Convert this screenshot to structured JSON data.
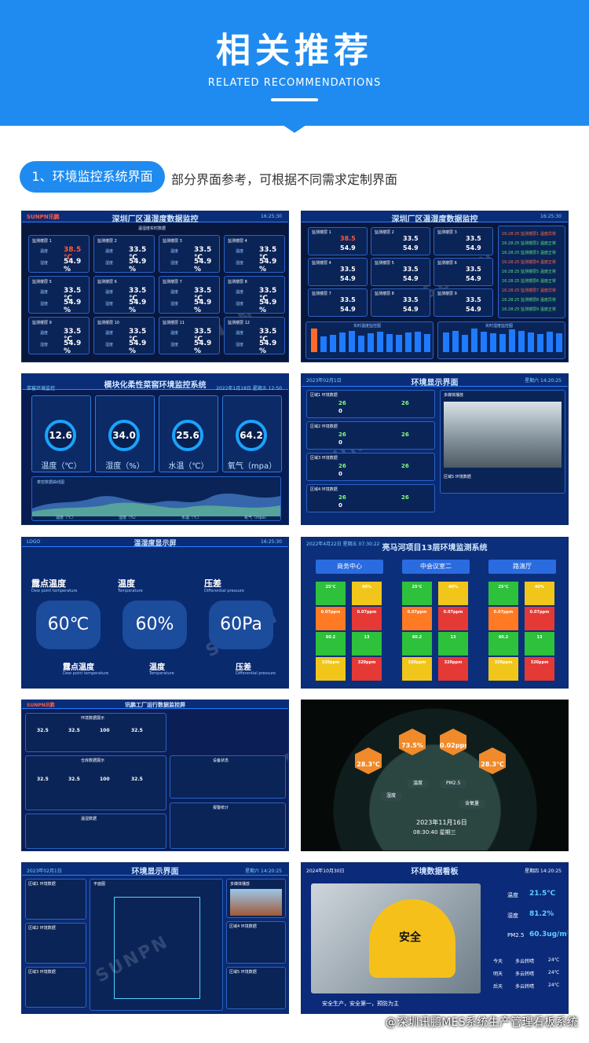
{
  "header": {
    "title": "相关推荐",
    "subtitle": "RELATED RECOMMENDATIONS"
  },
  "section": {
    "pill": "1、环境监控系统界面",
    "desc": "部分界面参考，可根据不同需求定制界面"
  },
  "watermark": "SUNPN",
  "footer": "@深圳讯鹏MES系统生产管理看板系统",
  "shot1": {
    "brand": "SUNPN讯鹏",
    "title": "深圳厂区温湿度数据监控",
    "time": "16:25:30",
    "sub": "温湿度实时数据",
    "cards": [
      {
        "name": "监测楼层 1",
        "t": "38.5",
        "h": "54.9",
        "hot": true
      },
      {
        "name": "监测楼层 2",
        "t": "33.5",
        "h": "54.9"
      },
      {
        "name": "监测楼层 3",
        "t": "33.5",
        "h": "54.9"
      },
      {
        "name": "监测楼层 4",
        "t": "33.5",
        "h": "54.9"
      },
      {
        "name": "监测楼层 5",
        "t": "33.5",
        "h": "54.9"
      },
      {
        "name": "监测楼层 6",
        "t": "33.5",
        "h": "54.9"
      },
      {
        "name": "监测楼层 7",
        "t": "33.5",
        "h": "54.9"
      },
      {
        "name": "监测楼层 8",
        "t": "33.5",
        "h": "54.9"
      },
      {
        "name": "监测楼层 9",
        "t": "33.5",
        "h": "54.9"
      },
      {
        "name": "监测楼层 10",
        "t": "33.5",
        "h": "54.9"
      },
      {
        "name": "监测楼层 11",
        "t": "33.5",
        "h": "54.9"
      },
      {
        "name": "监测楼层 12",
        "t": "33.5",
        "h": "54.9"
      }
    ],
    "t_label": "温度",
    "h_label": "湿度",
    "t_unit": "℃",
    "h_unit": "%"
  },
  "shot2": {
    "title": "深圳厂区温湿度数据监控",
    "time": "16:25:30",
    "alarms": [
      "16:28:25 监测楼层1 温度异常",
      "16:28:25 监测楼层2 温度正常",
      "16:28:25 监测楼层3 温度正常",
      "16:28:25 监测楼层4 温度正常",
      "16:28:25 监测楼层5 温度正常",
      "16:28:25 监测楼层6 温度正常",
      "16:28:25 监测楼层7 温度异常",
      "16:28:25 监测楼层8 温度异常",
      "16:28:25 监测楼层9 温度正常"
    ],
    "bar_left": "实时温度监控图",
    "bar_right": "实时湿度监控图"
  },
  "shot3": {
    "title": "模块化柔性菜窖环境监控系统",
    "date": "2022年1月18日  星期五  12:50",
    "left": "菜窖环境监控",
    "gauges": [
      {
        "value": "12.6",
        "label": "温度（℃）"
      },
      {
        "value": "34.0",
        "label": "湿度（%）"
      },
      {
        "value": "25.6",
        "label": "水温（℃）"
      },
      {
        "value": "64.2",
        "label": "氧气（mpa）"
      }
    ],
    "chart_title": "菜窖数据曲线图",
    "legend": [
      "温度（℃）",
      "湿度（%）",
      "水温（℃）",
      "氧气（mpa）"
    ]
  },
  "shot4": {
    "title": "环境显示界面",
    "date": "2023年02月1日",
    "week": "星期六  14:20:25",
    "zones": [
      "区域1 环境数据",
      "区域2 环境数据",
      "区域3 环境数据",
      "区域4 环境数据"
    ],
    "video": "多媒体播放",
    "zone5": "区域5 环境数据",
    "v26": "26",
    "v0": "0"
  },
  "shot5": {
    "brand": "LOGO",
    "title": "温湿度显示屏",
    "time": "16:25:30",
    "cols": [
      {
        "cn": "露点温度",
        "en": "Dew point temperature",
        "value": "60℃",
        "bcn": "露点温度",
        "ben": "Dew point temperature"
      },
      {
        "cn": "温度",
        "en": "Temperature",
        "value": "60%",
        "bcn": "温度",
        "ben": "Temperature"
      },
      {
        "cn": "压差",
        "en": "Differential pressure",
        "value": "60Pa",
        "bcn": "压差",
        "ben": "Differential pressure"
      }
    ]
  },
  "shot6": {
    "date": "2022年4月22日  星期五  07:30:22",
    "title": "亮马河项目13层环境监测系统",
    "rooms": [
      "商务中心",
      "中会议室二",
      "路演厅"
    ],
    "tiles": [
      [
        "25℃",
        "40%",
        "0.07ppm",
        "0.07ppm",
        "60.2",
        "13",
        "320ppm",
        "320ppm"
      ]
    ]
  },
  "shot7": {
    "brand": "SUNPN讯鹏",
    "title": "讯鹏工厂运行数据监控屏",
    "sections": [
      "环境数据展示",
      "仓库数据展示",
      "温湿数据",
      "设备状态",
      "报警统计"
    ],
    "values": [
      "32.5",
      "32.5",
      "100",
      "32.5"
    ]
  },
  "shot8": {
    "hexes": [
      "28.3℃",
      "73.5%",
      "0.02ppm",
      "28.3℃"
    ],
    "chips": [
      "温度",
      "PM2.5",
      "湿度",
      "含氧量"
    ],
    "date": "2023年11月16日",
    "time": "08:30:40  星期三"
  },
  "shot9": {
    "date": "2023年02月1日",
    "title": "环境显示界面",
    "week": "星期六  14:20:25",
    "plan": "平面图",
    "video": "多媒体播放",
    "zones": [
      "区域1 环境数据",
      "区域2 环境数据",
      "区域3 环境数据",
      "区域4 环境数据",
      "区域5 环境数据"
    ]
  },
  "shot10": {
    "date": "2024年10月30日",
    "title": "环境数据看板",
    "week": "星期四  14:20:25",
    "stats": [
      {
        "label": "温度",
        "value": "21.5℃"
      },
      {
        "label": "湿度",
        "value": "81.2%"
      },
      {
        "label": "PM2.5",
        "value": "60.3ug/m³"
      }
    ],
    "forecast": [
      {
        "day": "今天",
        "wx": "多云转晴",
        "t": "24℃"
      },
      {
        "day": "明天",
        "wx": "多云转晴",
        "t": "24℃"
      },
      {
        "day": "后天",
        "wx": "多云转晴",
        "t": "24℃"
      }
    ],
    "helmet": "安全",
    "ticker": "安全生产，安全第一，预防为主"
  }
}
